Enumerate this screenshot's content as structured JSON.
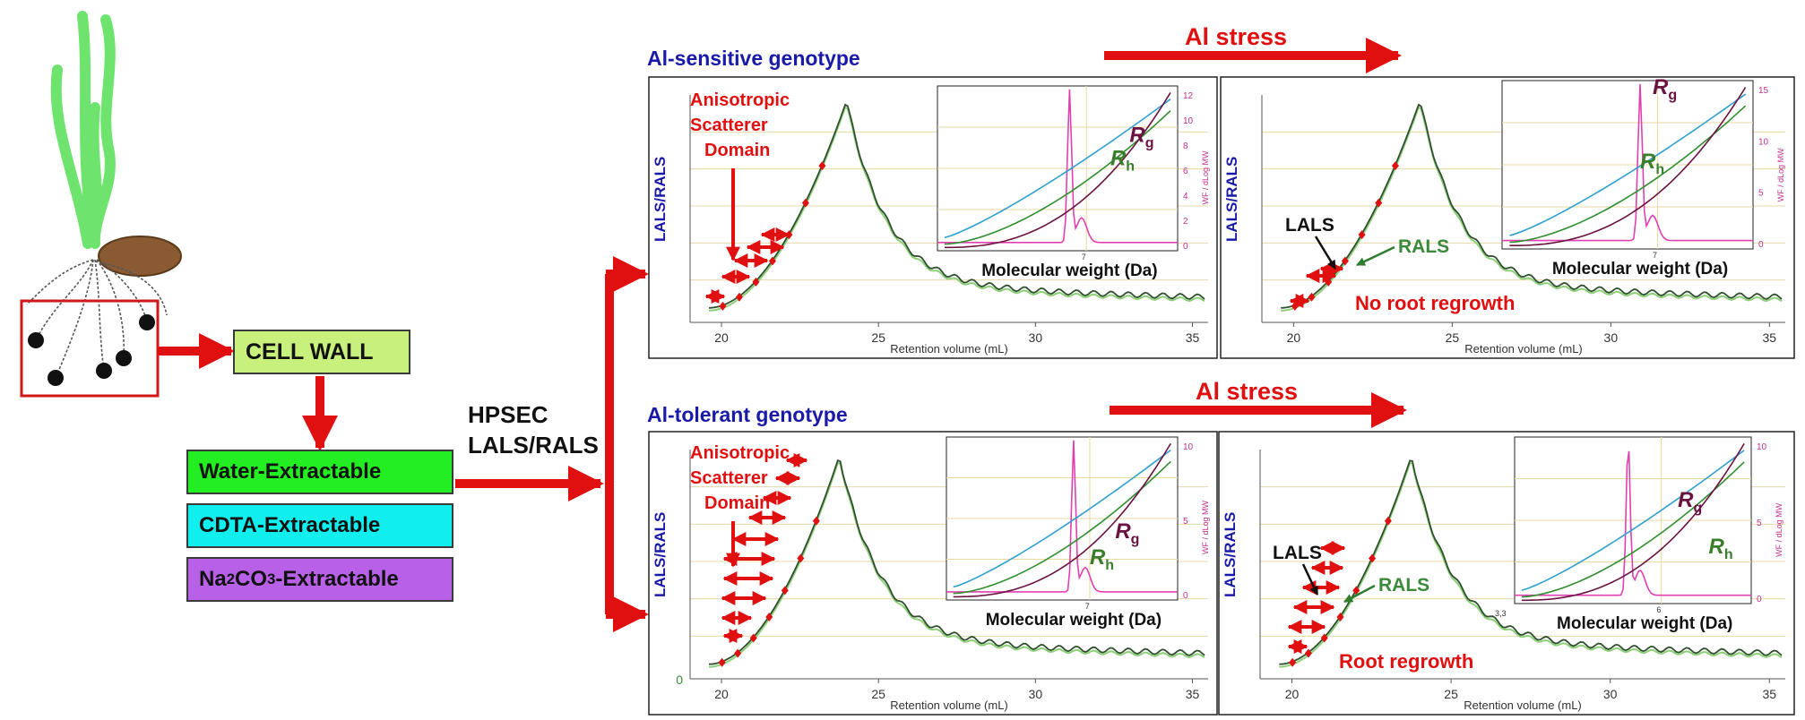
{
  "colors": {
    "arrow": "#e01010",
    "title": "#1a1aa8",
    "wall_green": "#c8f07c",
    "water": "#22ee22",
    "cdta": "#10eeee",
    "na2co3": "#b860e8",
    "rh": "#3a7d2a",
    "rg": "#6b1240",
    "rals": "#3a8a3a"
  },
  "left": {
    "cell_wall": "CELL WALL",
    "fractions": [
      {
        "label": "Water-Extractable"
      },
      {
        "label": "CDTA-Extractable"
      },
      {
        "pre": "Na",
        "sub1": "2",
        "mid": "CO",
        "sub2": "3",
        "post": "-Extractable"
      }
    ]
  },
  "method": {
    "line1": "HPSEC",
    "line2": "LALS/RALS"
  },
  "rows": [
    {
      "genotype": "Al-sensitive genotype",
      "stress": "Al stress",
      "outcome": "No  root regrowth"
    },
    {
      "genotype": "Al-tolerant genotype",
      "stress": "Al stress",
      "outcome": "Root  regrowth"
    }
  ],
  "labels": {
    "anisotropic_1": "Anisotropic",
    "anisotropic_2": "Scatterer",
    "anisotropic_3": "Domain",
    "lals": "LALS",
    "rals": "RALS",
    "ylabel": "LALS/RALS",
    "xlabel": "Retention volume (mL)",
    "inset_xlabel": "Molecular weight (Da)",
    "inset_ylabel": "WF / dLog MW",
    "rh_main": "R",
    "rh_sub": "h",
    "rg_main": "R",
    "rg_sub": "g",
    "inset_tick_power": "7",
    "inset_tick_power_b": "6",
    "inset_tick_prefix_b": "3,3"
  },
  "chart_data": [
    {
      "type": "line",
      "title": "Al-sensitive genotype",
      "xlabel": "Retention volume (mL)",
      "ylabel": "LALS/RALS",
      "xlim": [
        19,
        35.5
      ],
      "x_ticks": [
        "20",
        "25",
        "30",
        "35"
      ],
      "series": [
        {
          "name": "LALS"
        },
        {
          "name": "RALS"
        }
      ],
      "inset": {
        "xlabel": "Molecular weight (Da)",
        "ylabel": "WF / dLog MW",
        "y_ticks": [
          "0",
          "2",
          "4",
          "6",
          "8",
          "10",
          "12"
        ],
        "series": [
          {
            "name": "Rh"
          },
          {
            "name": "Rg"
          }
        ]
      }
    },
    {
      "type": "line",
      "xlabel": "Retention volume (mL)",
      "ylabel": "LALS/RALS",
      "xlim": [
        19,
        35.5
      ],
      "x_ticks": [
        "20",
        "25",
        "30",
        "35"
      ],
      "series": [
        {
          "name": "LALS"
        },
        {
          "name": "RALS"
        }
      ],
      "annotation": "No  root regrowth",
      "inset": {
        "xlabel": "Molecular weight (Da)",
        "ylabel": "WF / dLog MW",
        "y_ticks": [
          "0",
          "5",
          "10",
          "15"
        ],
        "series": [
          {
            "name": "Rg"
          },
          {
            "name": "Rh"
          }
        ]
      }
    },
    {
      "type": "line",
      "title": "Al-tolerant genotype",
      "xlabel": "Retention volume (mL)",
      "ylabel": "LALS/RALS",
      "xlim": [
        19,
        35.5
      ],
      "x_ticks": [
        "20",
        "25",
        "30",
        "35"
      ],
      "y_ticks": [
        "0"
      ],
      "series": [
        {
          "name": "LALS"
        },
        {
          "name": "RALS"
        }
      ],
      "inset": {
        "xlabel": "Molecular weight (Da)",
        "ylabel": "WF / dLog MW",
        "y_ticks": [
          "0",
          "5",
          "10"
        ],
        "series": [
          {
            "name": "Rg"
          },
          {
            "name": "Rh"
          }
        ]
      }
    },
    {
      "type": "line",
      "xlabel": "Retention volume (mL)",
      "ylabel": "LALS/RALS",
      "xlim": [
        19,
        35.5
      ],
      "x_ticks": [
        "20",
        "25",
        "30",
        "35"
      ],
      "series": [
        {
          "name": "LALS"
        },
        {
          "name": "RALS"
        }
      ],
      "annotation": "Root  regrowth",
      "inset": {
        "xlabel": "Molecular weight (Da)",
        "ylabel": "WF / dLog MW",
        "y_ticks": [
          "0",
          "5",
          "10"
        ],
        "series": [
          {
            "name": "Rg"
          },
          {
            "name": "Rh"
          }
        ]
      }
    }
  ]
}
